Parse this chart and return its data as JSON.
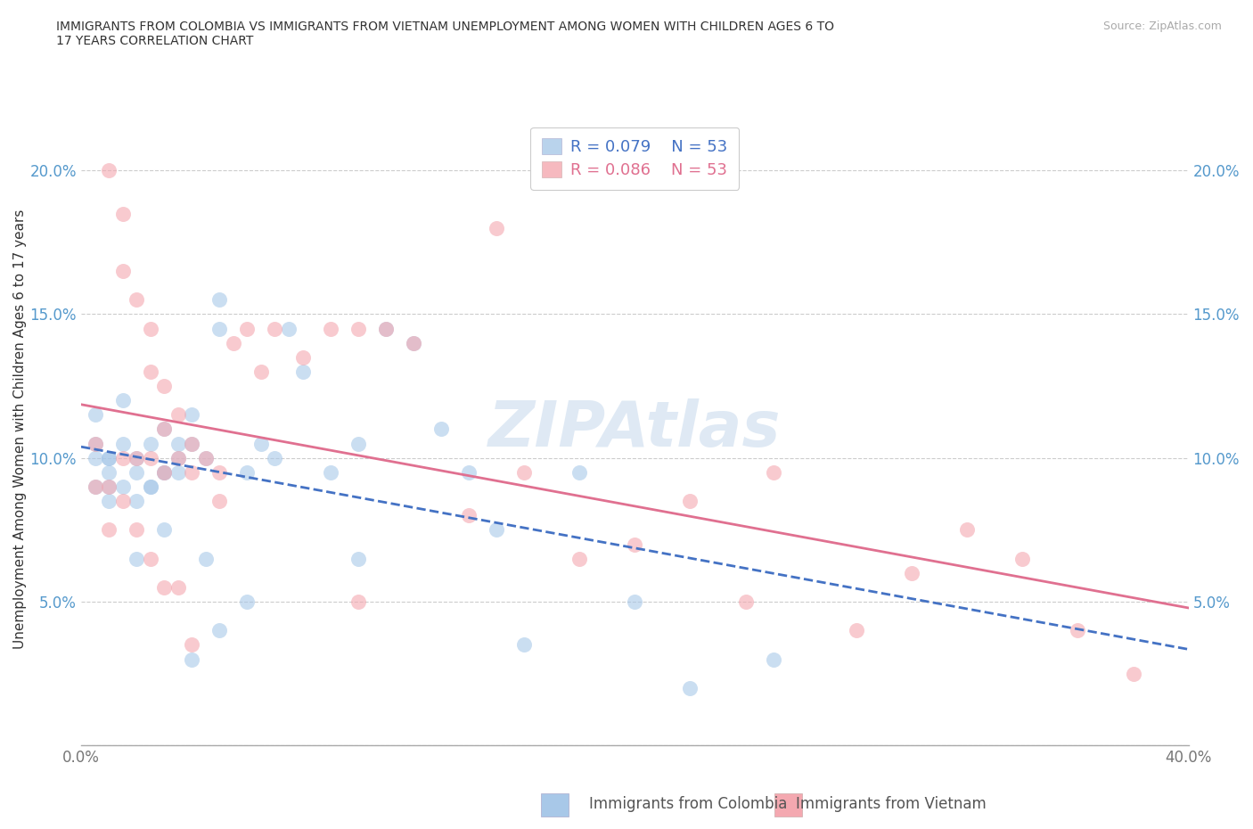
{
  "title": "IMMIGRANTS FROM COLOMBIA VS IMMIGRANTS FROM VIETNAM UNEMPLOYMENT AMONG WOMEN WITH CHILDREN AGES 6 TO\n17 YEARS CORRELATION CHART",
  "source": "Source: ZipAtlas.com",
  "ylabel": "Unemployment Among Women with Children Ages 6 to 17 years",
  "xlim": [
    0.0,
    0.4
  ],
  "ylim": [
    0.0,
    0.22
  ],
  "xticks": [
    0.0,
    0.05,
    0.1,
    0.15,
    0.2,
    0.25,
    0.3,
    0.35,
    0.4
  ],
  "yticks": [
    0.0,
    0.05,
    0.1,
    0.15,
    0.2
  ],
  "r_colombia": 0.079,
  "n_colombia": 53,
  "r_vietnam": 0.086,
  "n_vietnam": 53,
  "color_colombia": "#a8c8e8",
  "color_vietnam": "#f4a8b0",
  "line_color_colombia": "#4472c4",
  "line_color_vietnam": "#e07090",
  "watermark": "ZIPAtlas",
  "colombia_x": [
    0.005,
    0.005,
    0.005,
    0.005,
    0.01,
    0.01,
    0.01,
    0.01,
    0.01,
    0.015,
    0.015,
    0.015,
    0.02,
    0.02,
    0.02,
    0.02,
    0.025,
    0.025,
    0.025,
    0.03,
    0.03,
    0.03,
    0.03,
    0.035,
    0.035,
    0.035,
    0.04,
    0.04,
    0.04,
    0.045,
    0.045,
    0.05,
    0.05,
    0.05,
    0.06,
    0.06,
    0.065,
    0.07,
    0.075,
    0.08,
    0.09,
    0.1,
    0.1,
    0.11,
    0.12,
    0.13,
    0.14,
    0.15,
    0.16,
    0.18,
    0.2,
    0.22,
    0.25
  ],
  "colombia_y": [
    0.1,
    0.105,
    0.115,
    0.09,
    0.1,
    0.1,
    0.095,
    0.09,
    0.085,
    0.12,
    0.09,
    0.105,
    0.1,
    0.095,
    0.085,
    0.065,
    0.105,
    0.09,
    0.09,
    0.11,
    0.095,
    0.095,
    0.075,
    0.1,
    0.095,
    0.105,
    0.115,
    0.105,
    0.03,
    0.1,
    0.065,
    0.145,
    0.155,
    0.04,
    0.095,
    0.05,
    0.105,
    0.1,
    0.145,
    0.13,
    0.095,
    0.105,
    0.065,
    0.145,
    0.14,
    0.11,
    0.095,
    0.075,
    0.035,
    0.095,
    0.05,
    0.02,
    0.03
  ],
  "vietnam_x": [
    0.005,
    0.005,
    0.01,
    0.01,
    0.01,
    0.015,
    0.015,
    0.015,
    0.015,
    0.02,
    0.02,
    0.02,
    0.025,
    0.025,
    0.025,
    0.025,
    0.03,
    0.03,
    0.03,
    0.03,
    0.035,
    0.035,
    0.035,
    0.04,
    0.04,
    0.04,
    0.045,
    0.05,
    0.05,
    0.055,
    0.06,
    0.065,
    0.07,
    0.08,
    0.09,
    0.1,
    0.1,
    0.11,
    0.12,
    0.14,
    0.15,
    0.16,
    0.18,
    0.2,
    0.22,
    0.24,
    0.25,
    0.28,
    0.3,
    0.32,
    0.34,
    0.36,
    0.38
  ],
  "vietnam_y": [
    0.105,
    0.09,
    0.2,
    0.09,
    0.075,
    0.185,
    0.165,
    0.1,
    0.085,
    0.155,
    0.1,
    0.075,
    0.145,
    0.13,
    0.065,
    0.1,
    0.125,
    0.11,
    0.055,
    0.095,
    0.115,
    0.1,
    0.055,
    0.105,
    0.095,
    0.035,
    0.1,
    0.085,
    0.095,
    0.14,
    0.145,
    0.13,
    0.145,
    0.135,
    0.145,
    0.145,
    0.05,
    0.145,
    0.14,
    0.08,
    0.18,
    0.095,
    0.065,
    0.07,
    0.085,
    0.05,
    0.095,
    0.04,
    0.06,
    0.075,
    0.065,
    0.04,
    0.025
  ]
}
